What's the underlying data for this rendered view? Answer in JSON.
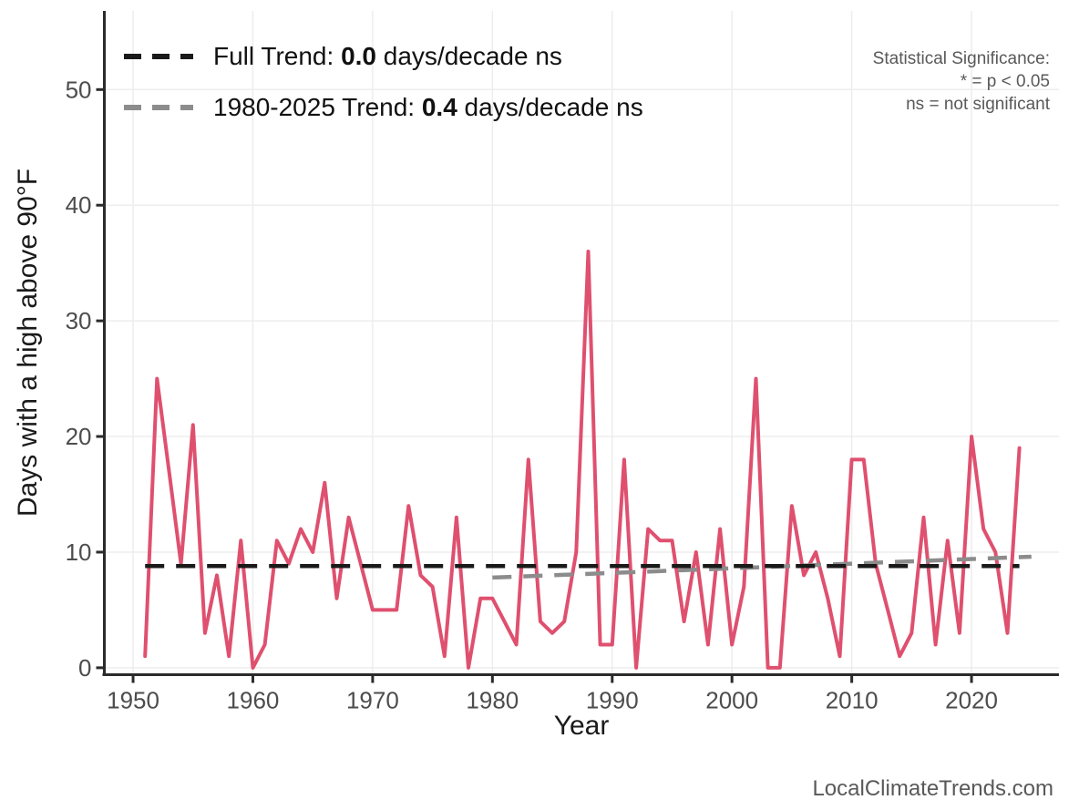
{
  "watermark": "LocalClimateTrends.com",
  "annotations": {
    "line1": "Statistical Significance:",
    "line2": "* = p < 0.05",
    "line3": "ns = not significant"
  },
  "legend": {
    "entries": [
      {
        "prefix": "Full Trend: ",
        "value": "0.0",
        "suffix": " days/decade ns",
        "color": "#1a1a1a"
      },
      {
        "prefix": "1980-2025 Trend: ",
        "value": "0.4",
        "suffix": " days/decade ns",
        "color": "#8c8c8c"
      }
    ]
  },
  "chart_data": {
    "type": "line",
    "title": "",
    "xlabel": "Year",
    "ylabel": "Days with a high above 90°F",
    "x_ticks": [
      1950,
      1960,
      1970,
      1980,
      1990,
      2000,
      2010,
      2020
    ],
    "y_ticks": [
      0,
      10,
      20,
      30,
      40,
      50
    ],
    "xlim": [
      1947.6,
      2027.3
    ],
    "ylim": [
      -0.6,
      56.8
    ],
    "grid": true,
    "legend_position": "top-left",
    "series": [
      {
        "name": "days-above-90F",
        "color": "#DF506F",
        "x": [
          1951,
          1952,
          1953,
          1954,
          1955,
          1956,
          1957,
          1958,
          1959,
          1960,
          1961,
          1962,
          1963,
          1964,
          1965,
          1966,
          1967,
          1968,
          1969,
          1970,
          1971,
          1972,
          1973,
          1974,
          1975,
          1976,
          1977,
          1978,
          1979,
          1980,
          1981,
          1982,
          1983,
          1984,
          1985,
          1986,
          1987,
          1988,
          1989,
          1990,
          1991,
          1992,
          1993,
          1994,
          1995,
          1996,
          1997,
          1998,
          1999,
          2000,
          2001,
          2002,
          2003,
          2004,
          2005,
          2006,
          2007,
          2008,
          2009,
          2010,
          2011,
          2012,
          2013,
          2014,
          2015,
          2016,
          2017,
          2018,
          2019,
          2020,
          2021,
          2022,
          2023,
          2024
        ],
        "values": [
          1,
          25,
          17,
          9,
          21,
          3,
          8,
          1,
          11,
          0,
          2,
          11,
          9,
          12,
          10,
          16,
          6,
          13,
          9,
          5,
          5,
          5,
          14,
          8,
          7,
          1,
          13,
          0,
          6,
          6,
          4,
          2,
          18,
          4,
          3,
          4,
          10,
          36,
          2,
          2,
          18,
          0,
          12,
          11,
          11,
          4,
          10,
          2,
          12,
          2,
          7,
          25,
          0,
          0,
          14,
          8,
          10,
          6,
          1,
          18,
          18,
          9,
          5,
          1,
          3,
          13,
          2,
          11,
          3,
          20,
          12,
          10,
          3,
          19
        ]
      }
    ],
    "trend_lines": [
      {
        "name": "full-trend",
        "color": "#1a1a1a",
        "x": [
          1951,
          2024
        ],
        "values": [
          8.8,
          8.8
        ],
        "slope_days_per_decade": 0.0,
        "significance": "ns"
      },
      {
        "name": "trend-1980-2025",
        "color": "#8c8c8c",
        "x": [
          1980,
          2025
        ],
        "values": [
          7.8,
          9.6
        ],
        "slope_days_per_decade": 0.4,
        "significance": "ns"
      }
    ]
  }
}
